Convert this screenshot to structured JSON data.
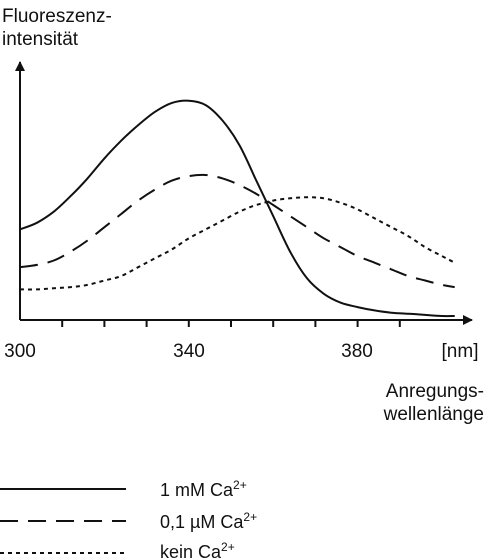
{
  "chart_data": {
    "type": "line",
    "ylabel": [
      "Fluoreszenz-",
      "intensität"
    ],
    "xlabel": [
      "Anregungs-",
      "wellenlänge"
    ],
    "x_unit": "[nm]",
    "x_ticks": [
      "300",
      "340",
      "380"
    ],
    "xlim": [
      300,
      405
    ],
    "ylim": [
      0,
      1
    ],
    "grid": false,
    "legend_position": "bottom",
    "series": [
      {
        "name": "1 mM Ca²⁺",
        "label_base": "1 mM Ca",
        "label_sup": "2+",
        "style": "solid",
        "x": [
          300,
          304,
          308,
          312,
          316,
          320,
          324,
          328,
          332,
          336,
          340,
          344,
          348,
          352,
          356,
          360,
          364,
          368,
          372,
          376,
          380,
          384,
          388,
          392,
          396,
          400,
          403
        ],
        "y": [
          0.39,
          0.42,
          0.47,
          0.54,
          0.62,
          0.71,
          0.79,
          0.86,
          0.92,
          0.96,
          0.97,
          0.95,
          0.88,
          0.77,
          0.61,
          0.45,
          0.29,
          0.17,
          0.1,
          0.06,
          0.04,
          0.025,
          0.015,
          0.01,
          0.005,
          0.0,
          0.0
        ]
      },
      {
        "name": "0,1 µM Ca²⁺",
        "label_base": "0,1 µM Ca",
        "label_sup": "2+",
        "style": "dashed",
        "x": [
          300,
          304,
          308,
          312,
          316,
          320,
          324,
          328,
          332,
          336,
          340,
          344,
          348,
          352,
          356,
          360,
          364,
          368,
          372,
          376,
          380,
          384,
          388,
          392,
          396,
          400,
          403
        ],
        "y": [
          0.22,
          0.23,
          0.25,
          0.29,
          0.34,
          0.4,
          0.46,
          0.52,
          0.57,
          0.61,
          0.63,
          0.635,
          0.62,
          0.59,
          0.55,
          0.5,
          0.45,
          0.4,
          0.35,
          0.31,
          0.27,
          0.24,
          0.21,
          0.18,
          0.16,
          0.14,
          0.13
        ]
      },
      {
        "name": "kein Ca²⁺",
        "label_base": "kein Ca",
        "label_sup": "2+",
        "style": "dotted",
        "x": [
          300,
          304,
          308,
          312,
          316,
          320,
          324,
          328,
          332,
          336,
          340,
          344,
          348,
          352,
          356,
          360,
          364,
          368,
          372,
          376,
          380,
          384,
          388,
          392,
          396,
          400,
          403
        ],
        "y": [
          0.12,
          0.12,
          0.125,
          0.13,
          0.14,
          0.16,
          0.18,
          0.22,
          0.26,
          0.3,
          0.35,
          0.39,
          0.43,
          0.47,
          0.5,
          0.52,
          0.53,
          0.535,
          0.53,
          0.51,
          0.48,
          0.44,
          0.4,
          0.36,
          0.31,
          0.27,
          0.24
        ]
      }
    ]
  }
}
